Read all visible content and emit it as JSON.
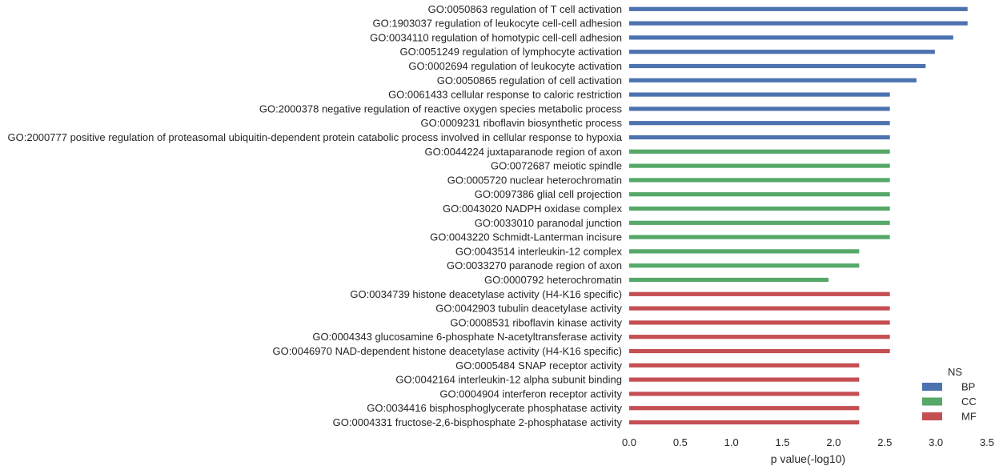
{
  "chart_data": {
    "type": "bar",
    "orientation": "horizontal",
    "xlabel": "p value(-log10)",
    "ylabel": "",
    "title": "",
    "xlim": [
      0.0,
      3.5
    ],
    "xticks": [
      "0.0",
      "0.5",
      "1.0",
      "1.5",
      "2.0",
      "2.5",
      "3.0",
      "3.5"
    ],
    "grid": false,
    "legend": {
      "title": "NS",
      "position": "bottom-right",
      "entries": [
        {
          "name": "BP",
          "color": "#4c72b0"
        },
        {
          "name": "CC",
          "color": "#55a868"
        },
        {
          "name": "MF",
          "color": "#c44e52"
        }
      ]
    },
    "bars": [
      {
        "label": "GO:0050863 regulation of T cell activation",
        "value": 3.31,
        "ns": "BP"
      },
      {
        "label": "GO:1903037 regulation of leukocyte cell-cell adhesion",
        "value": 3.31,
        "ns": "BP"
      },
      {
        "label": "GO:0034110 regulation of homotypic cell-cell adhesion",
        "value": 3.17,
        "ns": "BP"
      },
      {
        "label": "GO:0051249 regulation of lymphocyte activation",
        "value": 2.99,
        "ns": "BP"
      },
      {
        "label": "GO:0002694 regulation of leukocyte activation",
        "value": 2.9,
        "ns": "BP"
      },
      {
        "label": "GO:0050865 regulation of cell activation",
        "value": 2.81,
        "ns": "BP"
      },
      {
        "label": "GO:0061433 cellular response to caloric restriction",
        "value": 2.55,
        "ns": "BP"
      },
      {
        "label": "GO:2000378 negative regulation of reactive oxygen species metabolic process",
        "value": 2.55,
        "ns": "BP"
      },
      {
        "label": "GO:0009231 riboflavin biosynthetic process",
        "value": 2.55,
        "ns": "BP"
      },
      {
        "label": "GO:2000777 positive regulation of proteasomal ubiquitin-dependent protein catabolic process involved in cellular response to hypoxia",
        "value": 2.55,
        "ns": "BP"
      },
      {
        "label": "GO:0044224 juxtaparanode region of axon",
        "value": 2.55,
        "ns": "CC"
      },
      {
        "label": "GO:0072687 meiotic spindle",
        "value": 2.55,
        "ns": "CC"
      },
      {
        "label": "GO:0005720 nuclear heterochromatin",
        "value": 2.55,
        "ns": "CC"
      },
      {
        "label": "GO:0097386 glial cell projection",
        "value": 2.55,
        "ns": "CC"
      },
      {
        "label": "GO:0043020 NADPH oxidase complex",
        "value": 2.55,
        "ns": "CC"
      },
      {
        "label": "GO:0033010 paranodal junction",
        "value": 2.55,
        "ns": "CC"
      },
      {
        "label": "GO:0043220 Schmidt-Lanterman incisure",
        "value": 2.55,
        "ns": "CC"
      },
      {
        "label": "GO:0043514 interleukin-12 complex",
        "value": 2.25,
        "ns": "CC"
      },
      {
        "label": "GO:0033270 paranode region of axon",
        "value": 2.25,
        "ns": "CC"
      },
      {
        "label": "GO:0000792 heterochromatin",
        "value": 1.95,
        "ns": "CC"
      },
      {
        "label": "GO:0034739 histone deacetylase activity (H4-K16 specific)",
        "value": 2.55,
        "ns": "MF"
      },
      {
        "label": "GO:0042903 tubulin deacetylase activity",
        "value": 2.55,
        "ns": "MF"
      },
      {
        "label": "GO:0008531 riboflavin kinase activity",
        "value": 2.55,
        "ns": "MF"
      },
      {
        "label": "GO:0004343 glucosamine 6-phosphate N-acetyltransferase activity",
        "value": 2.55,
        "ns": "MF"
      },
      {
        "label": "GO:0046970 NAD-dependent histone deacetylase activity (H4-K16 specific)",
        "value": 2.55,
        "ns": "MF"
      },
      {
        "label": "GO:0005484 SNAP receptor activity",
        "value": 2.25,
        "ns": "MF"
      },
      {
        "label": "GO:0042164 interleukin-12 alpha subunit binding",
        "value": 2.25,
        "ns": "MF"
      },
      {
        "label": "GO:0004904 interferon receptor activity",
        "value": 2.25,
        "ns": "MF"
      },
      {
        "label": "GO:0034416 bisphosphoglycerate phosphatase activity",
        "value": 2.25,
        "ns": "MF"
      },
      {
        "label": "GO:0004331 fructose-2,6-bisphosphate 2-phosphatase activity",
        "value": 2.25,
        "ns": "MF"
      }
    ]
  }
}
